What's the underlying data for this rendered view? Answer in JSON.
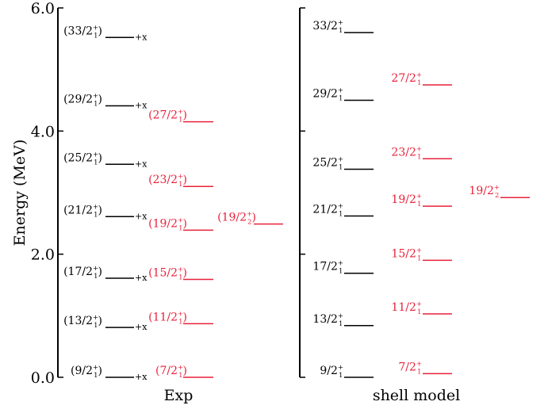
{
  "colors": {
    "black": "#000000",
    "red": "#e8213a"
  },
  "chart_data": {
    "type": "level-scheme",
    "ylabel": "Energy (MeV)",
    "ylim": [
      0,
      6
    ],
    "yticks": [
      0,
      2,
      4,
      6
    ],
    "ytick_labels": [
      "0.0",
      "2.0",
      "4.0",
      "6.0"
    ],
    "panels": [
      {
        "name": "Exp",
        "columns": [
          {
            "color": "black",
            "parens": true,
            "suffix": "+x",
            "levels": [
              {
                "num": "9/2",
                "sub": "1",
                "energy": 0.0
              },
              {
                "num": "13/2",
                "sub": "1",
                "energy": 0.81
              },
              {
                "num": "17/2",
                "sub": "1",
                "energy": 1.61
              },
              {
                "num": "21/2",
                "sub": "1",
                "energy": 2.61
              },
              {
                "num": "25/2",
                "sub": "1",
                "energy": 3.46
              },
              {
                "num": "29/2",
                "sub": "1",
                "energy": 4.41
              },
              {
                "num": "33/2",
                "sub": "1",
                "energy": 5.52
              }
            ]
          },
          {
            "color": "red",
            "parens": true,
            "suffix": "",
            "levels": [
              {
                "num": "7/2",
                "sub": "1",
                "energy": 0.0
              },
              {
                "num": "11/2",
                "sub": "1",
                "energy": 0.87
              },
              {
                "num": "15/2",
                "sub": "1",
                "energy": 1.59
              },
              {
                "num": "19/2",
                "sub": "1",
                "energy": 2.39
              },
              {
                "num": "23/2",
                "sub": "1",
                "energy": 3.1
              },
              {
                "num": "27/2",
                "sub": "1",
                "energy": 4.15
              }
            ]
          },
          {
            "color": "red",
            "parens": true,
            "suffix": "",
            "levels": [
              {
                "num": "19/2",
                "sub": "2",
                "energy": 2.49
              }
            ]
          }
        ]
      },
      {
        "name": "shell model",
        "columns": [
          {
            "color": "black",
            "parens": false,
            "suffix": "",
            "levels": [
              {
                "num": "9/2",
                "sub": "1",
                "energy": 0.0
              },
              {
                "num": "13/2",
                "sub": "1",
                "energy": 0.84
              },
              {
                "num": "17/2",
                "sub": "1",
                "energy": 1.69
              },
              {
                "num": "21/2",
                "sub": "1",
                "energy": 2.62
              },
              {
                "num": "25/2",
                "sub": "1",
                "energy": 3.38
              },
              {
                "num": "29/2",
                "sub": "1",
                "energy": 4.5
              },
              {
                "num": "33/2",
                "sub": "1",
                "energy": 5.6
              }
            ]
          },
          {
            "color": "red",
            "parens": false,
            "suffix": "",
            "levels": [
              {
                "num": "7/2",
                "sub": "1",
                "energy": 0.06
              },
              {
                "num": "11/2",
                "sub": "1",
                "energy": 1.03
              },
              {
                "num": "15/2",
                "sub": "1",
                "energy": 1.9
              },
              {
                "num": "19/2",
                "sub": "1",
                "energy": 2.78
              },
              {
                "num": "23/2",
                "sub": "1",
                "energy": 3.55
              },
              {
                "num": "27/2",
                "sub": "1",
                "energy": 4.75
              }
            ]
          },
          {
            "color": "red",
            "parens": false,
            "suffix": "",
            "levels": [
              {
                "num": "19/2",
                "sub": "2",
                "energy": 2.92
              }
            ]
          }
        ]
      }
    ]
  }
}
